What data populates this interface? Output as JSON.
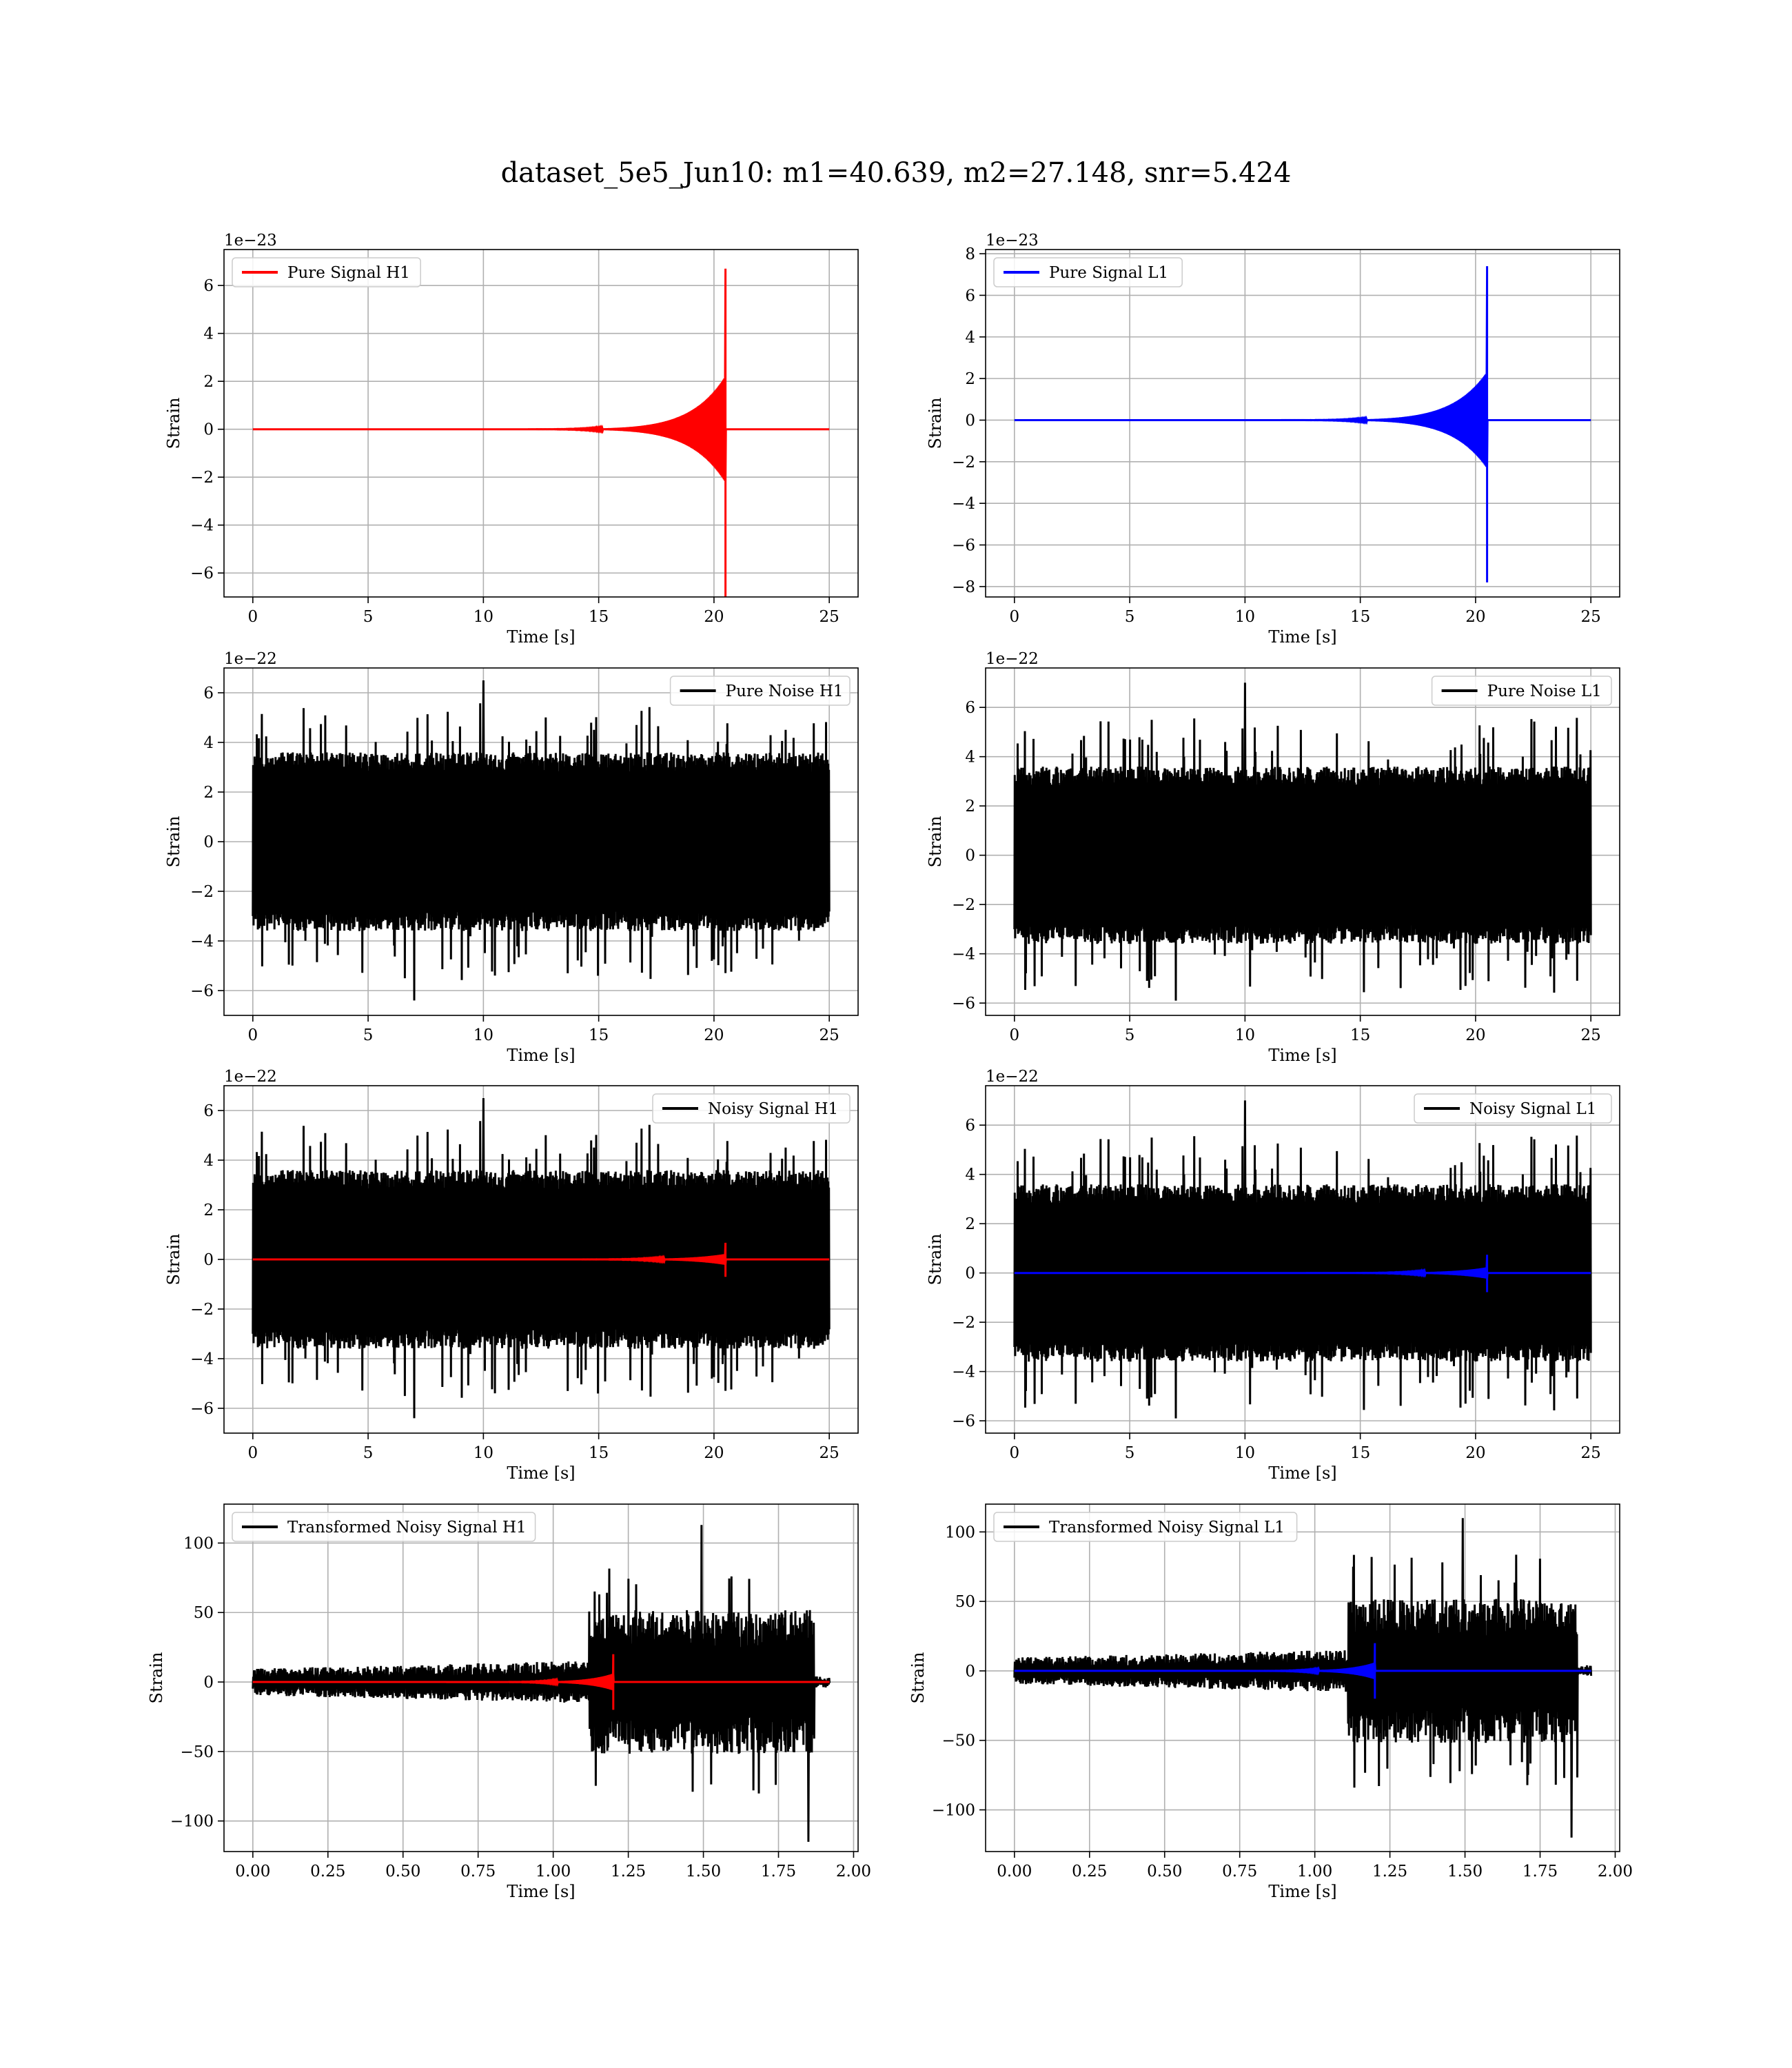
{
  "figure": {
    "suptitle": "dataset_5e5_Jun10: m1=40.639, m2=27.148, snr=5.424"
  },
  "colors": {
    "h1_signal": "#ff0000",
    "l1_signal": "#0000ff",
    "noise": "#000000",
    "grid": "#b0b0b0"
  },
  "chart_data": [
    {
      "id": "pure-signal-h1",
      "type": "line",
      "xlabel": "Time [s]",
      "ylabel": "Strain",
      "offset_text": "1e−23",
      "xlim": [
        -1.25,
        26.25
      ],
      "ylim": [
        -7.0,
        7.5
      ],
      "xticks": [
        0,
        5,
        10,
        15,
        20,
        25
      ],
      "xtick_labels": [
        "0",
        "5",
        "10",
        "15",
        "20",
        "25"
      ],
      "yticks": [
        -6,
        -4,
        -2,
        0,
        2,
        4,
        6
      ],
      "ytick_labels": [
        "−6",
        "−4",
        "−2",
        "0",
        "2",
        "4",
        "6"
      ],
      "grid": true,
      "legend": "upper-left",
      "series": [
        {
          "name": "Pure Signal H1",
          "color": "#ff0000",
          "kind": "chirp",
          "t_start": 0,
          "t_end": 25,
          "t_merger": 20.5,
          "peak_high": 6.7,
          "peak_low": -7.0,
          "inspiral_amp": 2.2
        }
      ]
    },
    {
      "id": "pure-signal-l1",
      "type": "line",
      "xlabel": "Time [s]",
      "ylabel": "Strain",
      "offset_text": "1e−23",
      "xlim": [
        -1.25,
        26.25
      ],
      "ylim": [
        -8.5,
        8.2
      ],
      "xticks": [
        0,
        5,
        10,
        15,
        20,
        25
      ],
      "xtick_labels": [
        "0",
        "5",
        "10",
        "15",
        "20",
        "25"
      ],
      "yticks": [
        -8,
        -6,
        -4,
        -2,
        0,
        2,
        4,
        6,
        8
      ],
      "ytick_labels": [
        "−8",
        "−6",
        "−4",
        "−2",
        "0",
        "2",
        "4",
        "6",
        "8"
      ],
      "grid": true,
      "legend": "upper-left",
      "series": [
        {
          "name": "Pure Signal L1",
          "color": "#0000ff",
          "kind": "chirp",
          "t_start": 0,
          "t_end": 25,
          "t_merger": 20.5,
          "peak_high": 7.4,
          "peak_low": -7.8,
          "inspiral_amp": 2.3
        }
      ]
    },
    {
      "id": "pure-noise-h1",
      "type": "line",
      "xlabel": "Time [s]",
      "ylabel": "Strain",
      "offset_text": "1e−22",
      "xlim": [
        -1.25,
        26.25
      ],
      "ylim": [
        -7.0,
        7.0
      ],
      "xticks": [
        0,
        5,
        10,
        15,
        20,
        25
      ],
      "xtick_labels": [
        "0",
        "5",
        "10",
        "15",
        "20",
        "25"
      ],
      "yticks": [
        -6,
        -4,
        -2,
        0,
        2,
        4,
        6
      ],
      "ytick_labels": [
        "−6",
        "−4",
        "−2",
        "0",
        "2",
        "4",
        "6"
      ],
      "grid": true,
      "legend": "upper-right",
      "series": [
        {
          "name": "Pure Noise H1",
          "color": "#000000",
          "kind": "noise",
          "t_start": 0,
          "t_end": 25,
          "band": 3.6,
          "max": 6.5,
          "min": -6.4,
          "seed": 11
        }
      ]
    },
    {
      "id": "pure-noise-l1",
      "type": "line",
      "xlabel": "Time [s]",
      "ylabel": "Strain",
      "offset_text": "1e−22",
      "xlim": [
        -1.25,
        26.25
      ],
      "ylim": [
        -6.5,
        7.6
      ],
      "xticks": [
        0,
        5,
        10,
        15,
        20,
        25
      ],
      "xtick_labels": [
        "0",
        "5",
        "10",
        "15",
        "20",
        "25"
      ],
      "yticks": [
        -6,
        -4,
        -2,
        0,
        2,
        4,
        6
      ],
      "ytick_labels": [
        "−6",
        "−4",
        "−2",
        "0",
        "2",
        "4",
        "6"
      ],
      "grid": true,
      "legend": "upper-right",
      "series": [
        {
          "name": "Pure Noise L1",
          "color": "#000000",
          "kind": "noise",
          "t_start": 0,
          "t_end": 25,
          "band": 3.6,
          "max": 7.0,
          "min": -5.9,
          "seed": 23
        }
      ]
    },
    {
      "id": "noisy-signal-h1",
      "type": "line",
      "xlabel": "Time [s]",
      "ylabel": "Strain",
      "offset_text": "1e−22",
      "xlim": [
        -1.25,
        26.25
      ],
      "ylim": [
        -7.0,
        7.0
      ],
      "xticks": [
        0,
        5,
        10,
        15,
        20,
        25
      ],
      "xtick_labels": [
        "0",
        "5",
        "10",
        "15",
        "20",
        "25"
      ],
      "yticks": [
        -6,
        -4,
        -2,
        0,
        2,
        4,
        6
      ],
      "ytick_labels": [
        "−6",
        "−4",
        "−2",
        "0",
        "2",
        "4",
        "6"
      ],
      "grid": true,
      "legend": "upper-right",
      "series": [
        {
          "name": "Noisy Signal H1",
          "color": "#000000",
          "kind": "noise",
          "t_start": 0,
          "t_end": 25,
          "band": 3.6,
          "max": 6.5,
          "min": -6.4,
          "seed": 11
        },
        {
          "color": "#ff0000",
          "kind": "chirp",
          "t_start": 0,
          "t_end": 25,
          "t_merger": 20.5,
          "peak_high": 0.67,
          "peak_low": -0.7,
          "inspiral_amp": 0.22
        }
      ]
    },
    {
      "id": "noisy-signal-l1",
      "type": "line",
      "xlabel": "Time [s]",
      "ylabel": "Strain",
      "offset_text": "1e−22",
      "xlim": [
        -1.25,
        26.25
      ],
      "ylim": [
        -6.5,
        7.6
      ],
      "xticks": [
        0,
        5,
        10,
        15,
        20,
        25
      ],
      "xtick_labels": [
        "0",
        "5",
        "10",
        "15",
        "20",
        "25"
      ],
      "yticks": [
        -6,
        -4,
        -2,
        0,
        2,
        4,
        6
      ],
      "ytick_labels": [
        "−6",
        "−4",
        "−2",
        "0",
        "2",
        "4",
        "6"
      ],
      "grid": true,
      "legend": "upper-right",
      "series": [
        {
          "name": "Noisy Signal L1",
          "color": "#000000",
          "kind": "noise",
          "t_start": 0,
          "t_end": 25,
          "band": 3.6,
          "max": 7.0,
          "min": -5.9,
          "seed": 23
        },
        {
          "color": "#0000ff",
          "kind": "chirp",
          "t_start": 0,
          "t_end": 25,
          "t_merger": 20.5,
          "peak_high": 0.74,
          "peak_low": -0.78,
          "inspiral_amp": 0.23
        }
      ]
    },
    {
      "id": "transformed-noisy-signal-h1",
      "type": "line",
      "xlabel": "Time [s]",
      "ylabel": "Strain",
      "offset_text": "",
      "xlim": [
        -0.096,
        2.015
      ],
      "ylim": [
        -122,
        128
      ],
      "xticks": [
        0,
        0.25,
        0.5,
        0.75,
        1.0,
        1.25,
        1.5,
        1.75,
        2.0
      ],
      "xtick_labels": [
        "0.00",
        "0.25",
        "0.50",
        "0.75",
        "1.00",
        "1.25",
        "1.50",
        "1.75",
        "2.00"
      ],
      "yticks": [
        -100,
        -50,
        0,
        50,
        100
      ],
      "ytick_labels": [
        "−100",
        "−50",
        "0",
        "50",
        "100"
      ],
      "grid": true,
      "legend": "upper-left",
      "series": [
        {
          "name": "Transformed Noisy Signal H1",
          "color": "#000000",
          "kind": "whitened",
          "t_start": 0,
          "t_end": 1.92,
          "t_jump": 1.12,
          "t_drop": 1.87,
          "amp_before": 8,
          "amp_after": 45,
          "max": 113,
          "min": -115,
          "seed": 31
        },
        {
          "color": "#ff0000",
          "kind": "chirp",
          "t_start": 0,
          "t_end": 1.92,
          "t_merger": 1.2,
          "peak_high": 20,
          "peak_low": -20,
          "inspiral_amp": 6
        }
      ]
    },
    {
      "id": "transformed-noisy-signal-l1",
      "type": "line",
      "xlabel": "Time [s]",
      "ylabel": "Strain",
      "offset_text": "",
      "xlim": [
        -0.096,
        2.015
      ],
      "ylim": [
        -130,
        120
      ],
      "xticks": [
        0,
        0.25,
        0.5,
        0.75,
        1.0,
        1.25,
        1.5,
        1.75,
        2.0
      ],
      "xtick_labels": [
        "0.00",
        "0.25",
        "0.50",
        "0.75",
        "1.00",
        "1.25",
        "1.50",
        "1.75",
        "2.00"
      ],
      "yticks": [
        -100,
        -50,
        0,
        50,
        100
      ],
      "ytick_labels": [
        "−100",
        "−50",
        "0",
        "50",
        "100"
      ],
      "grid": true,
      "legend": "upper-left",
      "series": [
        {
          "name": "Transformed Noisy Signal L1",
          "color": "#000000",
          "kind": "whitened",
          "t_start": 0,
          "t_end": 1.92,
          "t_jump": 1.11,
          "t_drop": 1.875,
          "amp_before": 8,
          "amp_after": 45,
          "max": 110,
          "min": -120,
          "seed": 47
        },
        {
          "color": "#0000ff",
          "kind": "chirp",
          "t_start": 0,
          "t_end": 1.92,
          "t_merger": 1.2,
          "peak_high": 20,
          "peak_low": -20,
          "inspiral_amp": 6
        }
      ]
    }
  ]
}
